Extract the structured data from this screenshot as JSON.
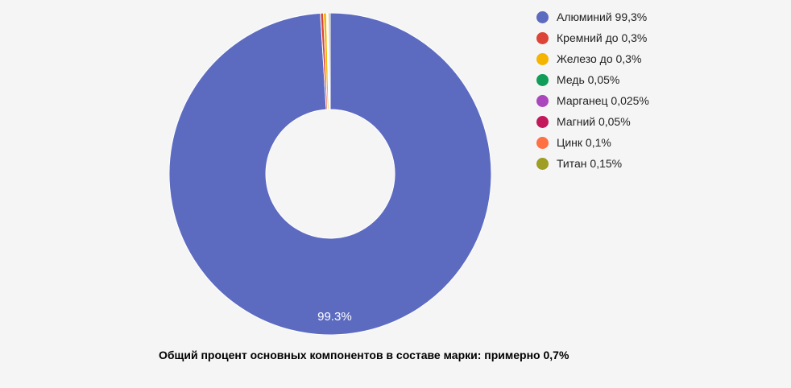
{
  "background_color": "#f5f5f6",
  "chart_data": {
    "type": "pie",
    "subtype": "donut",
    "legend_position": "right",
    "grid": false,
    "caption": "Общий процент основных компонентов в составе марки: примерно 0,7%",
    "center_slice_label": "99.3%",
    "slice_label_color": "#ffffff",
    "slices": [
      {
        "label": "Алюминий",
        "legend_label": "Алюминий 99,3%",
        "value": 99.3,
        "color": "#5c6bc0"
      },
      {
        "label": "Кремний",
        "legend_label": "Кремний до 0,3%",
        "value": 0.3,
        "color": "#db4437"
      },
      {
        "label": "Железо",
        "legend_label": "Железо до 0,3%",
        "value": 0.3,
        "color": "#f4b400"
      },
      {
        "label": "Медь",
        "legend_label": "Медь 0,05%",
        "value": 0.05,
        "color": "#0f9d58"
      },
      {
        "label": "Марганец",
        "legend_label": "Марганец 0,025%",
        "value": 0.025,
        "color": "#ab47bc"
      },
      {
        "label": "Магний",
        "legend_label": "Магний 0,05%",
        "value": 0.05,
        "color": "#c2185b"
      },
      {
        "label": "Цинк",
        "legend_label": "Цинк 0,1%",
        "value": 0.1,
        "color": "#ff7043"
      },
      {
        "label": "Титан",
        "legend_label": "Титан 0,15%",
        "value": 0.15,
        "color": "#9e9d24"
      }
    ]
  }
}
